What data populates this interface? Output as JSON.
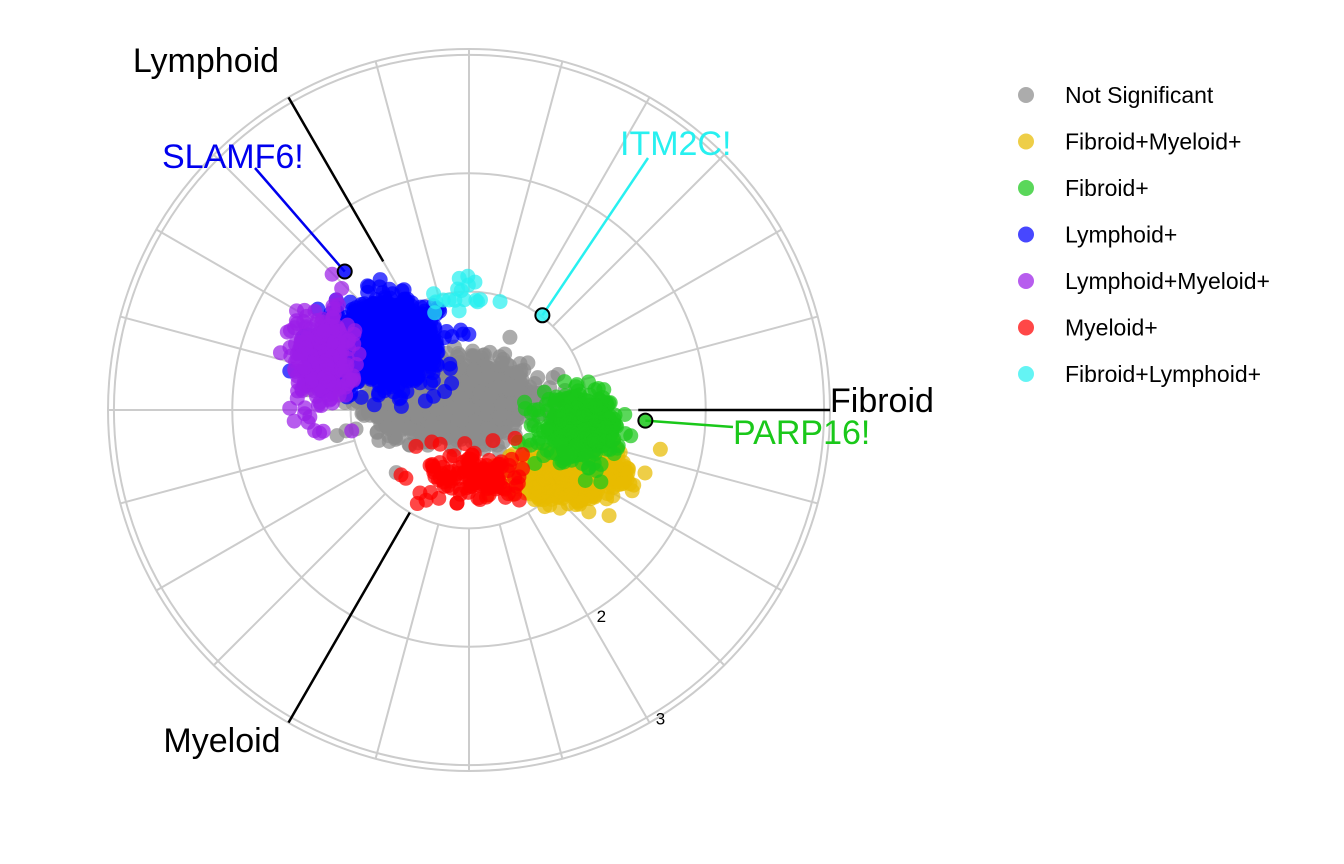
{
  "chart_data": {
    "type": "scatter",
    "subtype": "polar-volcano",
    "axes": [
      "Fibroid",
      "Lymphoid",
      "Myeloid"
    ],
    "axis_angles_deg": {
      "Fibroid": 0,
      "Lymphoid": 120,
      "Myeloid": 240
    },
    "radial_ticks": [
      "2",
      "3"
    ],
    "rmax": 3.05,
    "grid": true,
    "legend_position": "right",
    "series": [
      {
        "name": "Not Significant",
        "color": "#8c8c8c",
        "n": 2200,
        "x_mean": -0.15,
        "y_mean": 0.1,
        "x_sd": 0.3,
        "y_sd": 0.15
      },
      {
        "name": "Fibroid+Myeloid+",
        "color": "#e8bb00",
        "n": 700,
        "x_mean": 0.82,
        "y_mean": -0.55,
        "x_sd": 0.22,
        "y_sd": 0.1
      },
      {
        "name": "Fibroid+",
        "color": "#1ac81a",
        "n": 450,
        "x_mean": 0.95,
        "y_mean": -0.15,
        "x_sd": 0.16,
        "y_sd": 0.13
      },
      {
        "name": "Lymphoid+",
        "color": "#0000ff",
        "n": 1100,
        "x_mean": -0.72,
        "y_mean": 0.58,
        "x_sd": 0.22,
        "y_sd": 0.17
      },
      {
        "name": "Lymphoid+Myeloid+",
        "color": "#9b1fe8",
        "n": 260,
        "x_mean": -1.25,
        "y_mean": 0.42,
        "x_sd": 0.13,
        "y_sd": 0.22
      },
      {
        "name": "Myeloid+",
        "color": "#ff0000",
        "n": 130,
        "x_mean": 0.05,
        "y_mean": -0.55,
        "x_sd": 0.2,
        "y_sd": 0.12
      },
      {
        "name": "Fibroid+Lymphoid+",
        "color": "#28f0f0",
        "n": 18,
        "x_mean": -0.05,
        "y_mean": 0.95,
        "x_sd": 0.2,
        "y_sd": 0.12
      }
    ],
    "labelled_genes": [
      {
        "name": "SLAMF6!",
        "color": "#0000ee",
        "x": -1.05,
        "y": 1.17,
        "fill": "#0000ff"
      },
      {
        "name": "ITM2C!",
        "color": "#28f0f0",
        "x": 0.62,
        "y": 0.8,
        "fill": "#28f0f0"
      },
      {
        "name": "PARP16!",
        "color": "#1ac81a",
        "x": 1.49,
        "y": -0.09,
        "fill": "#1ac81a"
      }
    ]
  }
}
